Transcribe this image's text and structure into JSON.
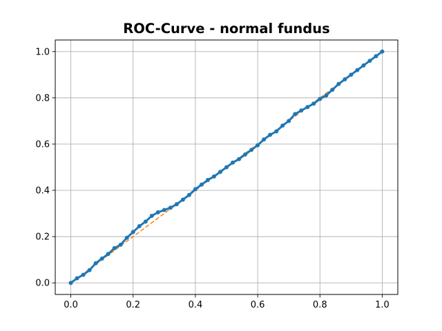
{
  "chart_data": {
    "type": "line",
    "title": "ROC-Curve - normal fundus",
    "xlabel": "",
    "ylabel": "",
    "xlim": [
      -0.05,
      1.05
    ],
    "ylim": [
      -0.05,
      1.05
    ],
    "x_ticks": [
      0.0,
      0.2,
      0.4,
      0.6,
      0.8,
      1.0
    ],
    "x_tick_labels": [
      "0.0",
      "0.2",
      "0.4",
      "0.6",
      "0.8",
      "1.0"
    ],
    "y_ticks": [
      0.0,
      0.2,
      0.4,
      0.6,
      0.8,
      1.0
    ],
    "y_tick_labels": [
      "0.0",
      "0.2",
      "0.4",
      "0.6",
      "0.8",
      "1.0"
    ],
    "grid": true,
    "legend": "none",
    "series": [
      {
        "style": "dashed",
        "color": "#ff7f0e",
        "x": [
          0,
          1
        ],
        "y": [
          0,
          1
        ]
      },
      {
        "style": "solid-marker",
        "color": "#1f77b4",
        "x": [
          0,
          0.02,
          0.04,
          0.06,
          0.08,
          0.1,
          0.12,
          0.14,
          0.16,
          0.18,
          0.2,
          0.22,
          0.24,
          0.26,
          0.28,
          0.3,
          0.32,
          0.34,
          0.36,
          0.38,
          0.4,
          0.42,
          0.44,
          0.46,
          0.48,
          0.5,
          0.52,
          0.54,
          0.56,
          0.58,
          0.6,
          0.62,
          0.64,
          0.66,
          0.68,
          0.7,
          0.72,
          0.74,
          0.76,
          0.78,
          0.8,
          0.82,
          0.84,
          0.86,
          0.88,
          0.9,
          0.92,
          0.94,
          0.96,
          0.98,
          1.0
        ],
        "y": [
          0,
          0.02,
          0.035,
          0.055,
          0.085,
          0.105,
          0.125,
          0.15,
          0.165,
          0.195,
          0.22,
          0.245,
          0.265,
          0.29,
          0.305,
          0.315,
          0.325,
          0.34,
          0.36,
          0.38,
          0.405,
          0.425,
          0.445,
          0.46,
          0.48,
          0.5,
          0.52,
          0.535,
          0.555,
          0.575,
          0.595,
          0.62,
          0.64,
          0.655,
          0.68,
          0.7,
          0.73,
          0.745,
          0.76,
          0.775,
          0.795,
          0.81,
          0.835,
          0.86,
          0.88,
          0.9,
          0.92,
          0.94,
          0.96,
          0.98,
          1.0
        ]
      }
    ]
  }
}
